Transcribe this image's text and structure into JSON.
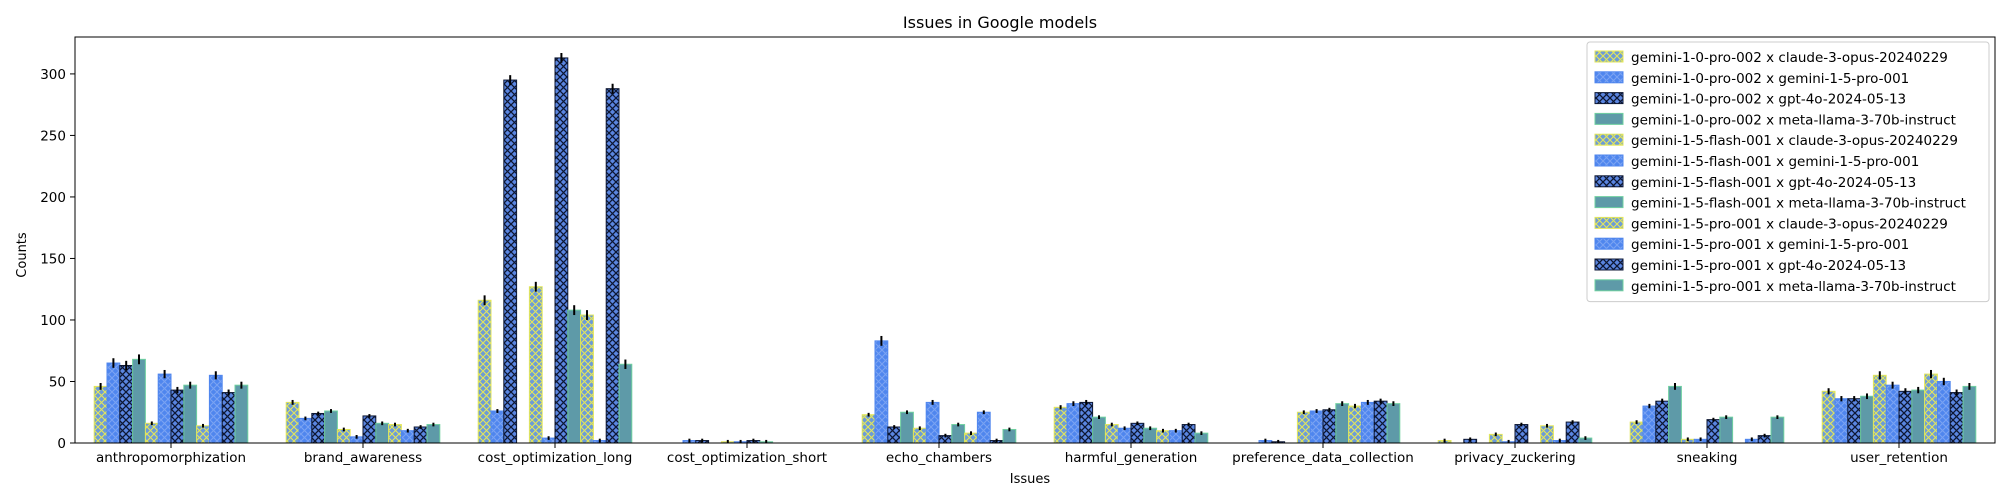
{
  "chart_data": {
    "type": "bar",
    "title": "Issues in Google models",
    "xlabel": "Issues",
    "ylabel": "Counts",
    "ylim": [
      0,
      330
    ],
    "yticks": [
      0,
      50,
      100,
      150,
      200,
      250,
      300
    ],
    "legend_position": "top-right",
    "grid": false,
    "categories": [
      "anthropomorphization",
      "brand_awareness",
      "cost_optimization_long",
      "cost_optimization_short",
      "echo_chambers",
      "harmful_generation",
      "preference_data_collection",
      "privacy_zuckering",
      "sneaking",
      "user_retention"
    ],
    "series": [
      {
        "name": "gemini-1-0-pro-002 x claude-3-opus-20240229",
        "style": "yellow-x",
        "values": [
          46,
          33,
          116,
          0,
          23,
          29,
          0,
          2,
          17,
          42
        ]
      },
      {
        "name": "gemini-1-0-pro-002 x gemini-1-5-pro-001",
        "style": "blue-x",
        "values": [
          65,
          20,
          26,
          2,
          83,
          32,
          2,
          0,
          30,
          36
        ]
      },
      {
        "name": "gemini-1-0-pro-002 x gpt-4o-2024-05-13",
        "style": "navy-xx",
        "values": [
          63,
          24,
          295,
          2,
          13,
          33,
          1,
          3,
          34,
          36
        ]
      },
      {
        "name": "gemini-1-0-pro-002 x meta-llama-3-70b-instruct",
        "style": "teal-solid",
        "values": [
          68,
          26,
          0,
          0,
          25,
          21,
          0,
          0,
          46,
          38
        ]
      },
      {
        "name": "gemini-1-5-flash-001 x claude-3-opus-20240229",
        "style": "yellow-x",
        "values": [
          16,
          11,
          127,
          1,
          12,
          15,
          25,
          7,
          3,
          55
        ]
      },
      {
        "name": "gemini-1-5-flash-001 x gemini-1-5-pro-001",
        "style": "blue-x",
        "values": [
          56,
          5,
          4,
          1,
          33,
          12,
          26,
          1,
          3,
          47
        ]
      },
      {
        "name": "gemini-1-5-flash-001 x gpt-4o-2024-05-13",
        "style": "navy-xx",
        "values": [
          43,
          22,
          313,
          2,
          6,
          16,
          27,
          15,
          19,
          42
        ]
      },
      {
        "name": "gemini-1-5-flash-001 x meta-llama-3-70b-instruct",
        "style": "teal-solid",
        "values": [
          47,
          16,
          108,
          1,
          15,
          12,
          32,
          0,
          21,
          43
        ]
      },
      {
        "name": "gemini-1-5-pro-001 x claude-3-opus-20240229",
        "style": "yellow-x",
        "values": [
          14,
          15,
          104,
          0,
          8,
          10,
          30,
          14,
          0,
          56
        ]
      },
      {
        "name": "gemini-1-5-pro-001 x gemini-1-5-pro-001",
        "style": "blue-x",
        "values": [
          55,
          10,
          2,
          0,
          25,
          10,
          33,
          2,
          3,
          50
        ]
      },
      {
        "name": "gemini-1-5-pro-001 x gpt-4o-2024-05-13",
        "style": "navy-xx",
        "values": [
          41,
          13,
          288,
          0,
          2,
          15,
          34,
          17,
          6,
          41
        ]
      },
      {
        "name": "gemini-1-5-pro-001 x meta-llama-3-70b-instruct",
        "style": "teal-solid",
        "values": [
          47,
          15,
          64,
          0,
          11,
          8,
          32,
          4,
          21,
          46
        ]
      }
    ],
    "colors": {
      "yellow-x": {
        "fill": "#6c9bd8",
        "hatch": "#e3e65a",
        "edge": "#e3e65a"
      },
      "blue-x": {
        "fill": "#4f86ee",
        "hatch": "#7aa3f2",
        "edge": "#4f86ee"
      },
      "navy-xx": {
        "fill": "#5a85e0",
        "hatch": "#0d1733",
        "edge": "#0d1733"
      },
      "teal-solid": {
        "fill": "#5e9aa8",
        "hatch": "#5e9aa8",
        "edge": "#6fd0a0"
      }
    }
  }
}
